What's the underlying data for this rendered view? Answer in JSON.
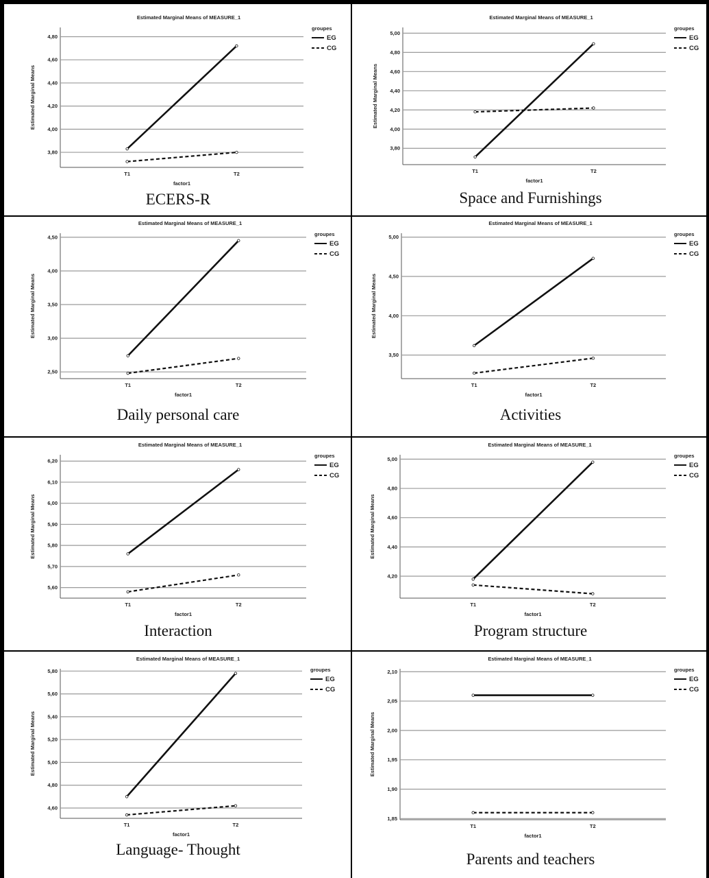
{
  "chart_data": [
    {
      "type": "line",
      "title": "Estimated Marginal Means of MEASURE_1",
      "caption": "ECERS-R",
      "xlabel": "factor1",
      "ylabel": "Estimated Marginal Means",
      "categories": [
        "T1",
        "T2"
      ],
      "yticks": [
        "3,80",
        "4,00",
        "4,20",
        "4,40",
        "4,60",
        "4,80"
      ],
      "ylim": [
        3.67,
        4.88
      ],
      "grid": true,
      "legend_title": "groupes",
      "legend_position": "top-right",
      "series": [
        {
          "name": "EG",
          "style": "solid",
          "values": [
            3.83,
            4.72
          ]
        },
        {
          "name": "CG",
          "style": "dashed",
          "values": [
            3.72,
            3.8
          ]
        }
      ]
    },
    {
      "type": "line",
      "title": "Estimated Marginal Means of MEASURE_1",
      "caption": "Space and Furnishings",
      "xlabel": "factor1",
      "ylabel": "Estimated Marginal Means",
      "categories": [
        "T1",
        "T2"
      ],
      "yticks": [
        "3,80",
        "4,00",
        "4,20",
        "4,40",
        "4,60",
        "4,80",
        "5,00"
      ],
      "ylim": [
        3.63,
        5.06
      ],
      "grid": true,
      "legend_title": "groupes",
      "legend_position": "top-right",
      "series": [
        {
          "name": "EG",
          "style": "solid",
          "values": [
            3.71,
            4.89
          ]
        },
        {
          "name": "CG",
          "style": "dashed",
          "values": [
            4.18,
            4.22
          ]
        }
      ]
    },
    {
      "type": "line",
      "title": "Estimated Marginal Means of MEASURE_1",
      "caption": "Daily personal care",
      "xlabel": "factor1",
      "ylabel": "Estimated Marginal Means",
      "categories": [
        "T1",
        "T2"
      ],
      "yticks": [
        "2,50",
        "3,00",
        "3,50",
        "4,00",
        "4,50"
      ],
      "ylim": [
        2.4,
        4.56
      ],
      "grid": true,
      "legend_title": "groupes",
      "legend_position": "top-right",
      "series": [
        {
          "name": "EG",
          "style": "solid",
          "values": [
            2.74,
            4.45
          ]
        },
        {
          "name": "CG",
          "style": "dashed",
          "values": [
            2.48,
            2.7
          ]
        }
      ]
    },
    {
      "type": "line",
      "title": "Estimated Marginal Means of MEASURE_1",
      "caption": "Activities",
      "xlabel": "factor1",
      "ylabel": "Estimated Marginal Means",
      "categories": [
        "T1",
        "T2"
      ],
      "yticks": [
        "3,50",
        "4,00",
        "4,50",
        "5,00"
      ],
      "ylim": [
        3.2,
        5.05
      ],
      "grid": true,
      "legend_title": "groupes",
      "legend_position": "top-right",
      "series": [
        {
          "name": "EG",
          "style": "solid",
          "values": [
            3.62,
            4.73
          ]
        },
        {
          "name": "CG",
          "style": "dashed",
          "values": [
            3.27,
            3.46
          ]
        }
      ]
    },
    {
      "type": "line",
      "title": "Estimated Marginal Means of MEASURE_1",
      "caption": "Interaction",
      "xlabel": "factor1",
      "ylabel": "Estimated Marginal Means",
      "categories": [
        "T1",
        "T2"
      ],
      "yticks": [
        "5,60",
        "5,70",
        "5,80",
        "5,90",
        "6,00",
        "6,10",
        "6,20"
      ],
      "ylim": [
        5.55,
        6.23
      ],
      "grid": true,
      "legend_title": "groupes",
      "legend_position": "top-right",
      "series": [
        {
          "name": "EG",
          "style": "solid",
          "values": [
            5.76,
            6.16
          ]
        },
        {
          "name": "CG",
          "style": "dashed",
          "values": [
            5.58,
            5.66
          ]
        }
      ]
    },
    {
      "type": "line",
      "title": "Estimated Marginal Means of MEASURE_1",
      "caption": "Program structure",
      "xlabel": "factor1",
      "ylabel": "Estimated Marginal Means",
      "categories": [
        "T1",
        "T2"
      ],
      "yticks": [
        "4,20",
        "4,40",
        "4,60",
        "4,80",
        "5,00"
      ],
      "ylim": [
        4.05,
        5.03
      ],
      "grid": true,
      "legend_title": "groupes",
      "legend_position": "top-right",
      "series": [
        {
          "name": "EG",
          "style": "solid",
          "values": [
            4.18,
            4.98
          ]
        },
        {
          "name": "CG",
          "style": "dashed",
          "values": [
            4.14,
            4.08
          ]
        }
      ]
    },
    {
      "type": "line",
      "title": "Estimated Marginal Means of MEASURE_1",
      "caption": "Language- Thought",
      "xlabel": "factor1",
      "ylabel": "Estimated Marginal Means",
      "categories": [
        "T1",
        "T2"
      ],
      "yticks": [
        "4,60",
        "4,80",
        "5,00",
        "5,20",
        "5,40",
        "5,60",
        "5,80"
      ],
      "ylim": [
        4.51,
        5.82
      ],
      "grid": true,
      "legend_title": "groupes",
      "legend_position": "top-right",
      "series": [
        {
          "name": "EG",
          "style": "solid",
          "values": [
            4.7,
            5.78
          ]
        },
        {
          "name": "CG",
          "style": "dashed",
          "values": [
            4.54,
            4.62
          ]
        }
      ]
    },
    {
      "type": "line",
      "title": "Estimated Marginal Means of MEASURE_1",
      "caption": "Parents and teachers",
      "xlabel": "factor1",
      "ylabel": "Estimated Marginal Means",
      "categories": [
        "T1",
        "T2"
      ],
      "yticks": [
        "1,85",
        "1,90",
        "1,95",
        "2,00",
        "2,05",
        "2,10"
      ],
      "ylim": [
        1.848,
        2.105
      ],
      "grid": true,
      "legend_title": "groupes",
      "legend_position": "top-right",
      "series": [
        {
          "name": "EG",
          "style": "solid",
          "values": [
            2.06,
            2.06
          ]
        },
        {
          "name": "CG",
          "style": "dashed",
          "values": [
            1.86,
            1.86
          ]
        }
      ]
    }
  ]
}
